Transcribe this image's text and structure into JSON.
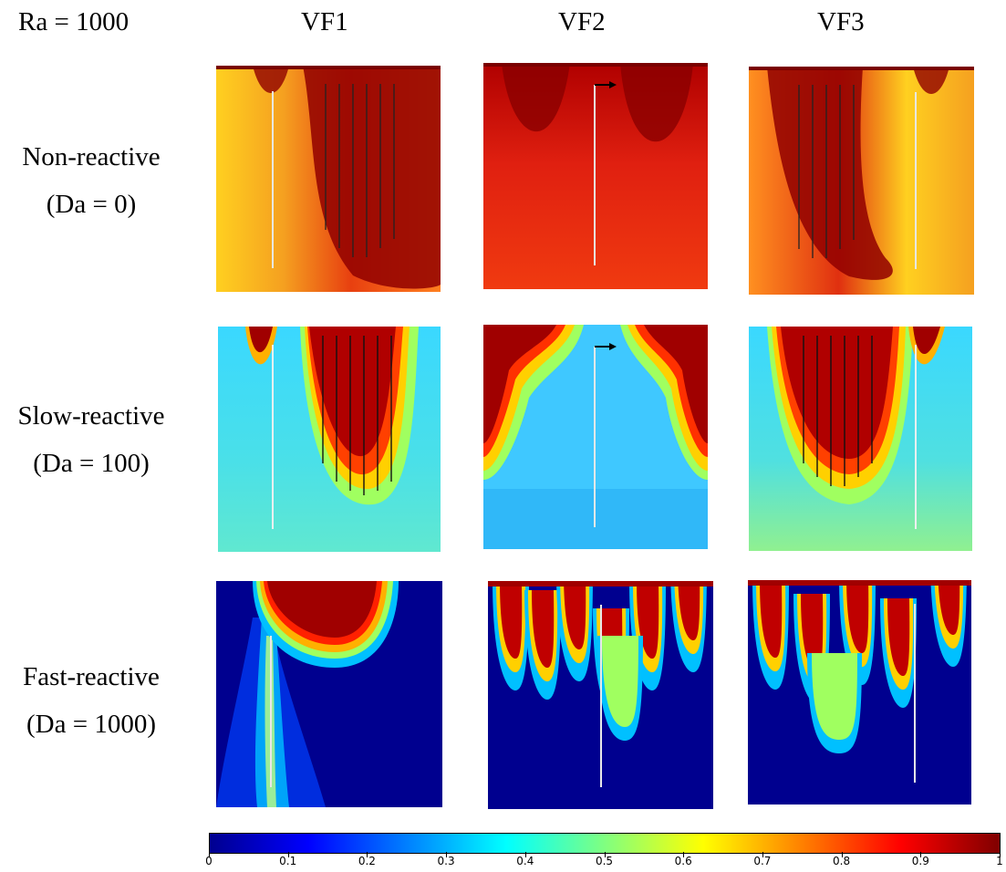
{
  "header": {
    "corner_label": "Ra = 1000",
    "columns": [
      "VF1",
      "VF2",
      "VF3"
    ]
  },
  "rows": [
    {
      "line1": "Non-reactive",
      "line2": "(Da = 0)"
    },
    {
      "line1": "Slow-reactive",
      "line2": "(Da = 100)"
    },
    {
      "line1": "Fast-reactive",
      "line2": "(Da = 1000)"
    }
  ],
  "colorbar": {
    "min": 0,
    "max": 1,
    "tick_labels": [
      "0",
      "0.1",
      "0.2",
      "0.3",
      "0.4",
      "0.5",
      "0.6",
      "0.7",
      "0.8",
      "0.9",
      "1"
    ],
    "colormap": "jet",
    "colors": [
      "#00008f",
      "#0000ff",
      "#0080ff",
      "#00ffff",
      "#80ff80",
      "#ffff00",
      "#ff8000",
      "#ff0000",
      "#800000"
    ]
  },
  "panels": [
    {
      "name": "vf1-non-reactive",
      "background": "#f5a020",
      "well": "left"
    },
    {
      "name": "vf2-non-reactive",
      "background": "#ee3a10",
      "well": "center"
    },
    {
      "name": "vf3-non-reactive",
      "background": "#f5a020",
      "well": "right"
    },
    {
      "name": "vf1-slow-reactive",
      "background": "#4cd0ff",
      "well": "left"
    },
    {
      "name": "vf2-slow-reactive",
      "background": "#3fcbff",
      "well": "center"
    },
    {
      "name": "vf3-slow-reactive",
      "background": "#4cd0ff",
      "well": "right"
    },
    {
      "name": "vf1-fast-reactive",
      "background": "#00008f",
      "well": "left"
    },
    {
      "name": "vf2-fast-reactive",
      "background": "#00008f",
      "well": "center"
    },
    {
      "name": "vf3-fast-reactive",
      "background": "#00008f",
      "well": "right"
    }
  ]
}
